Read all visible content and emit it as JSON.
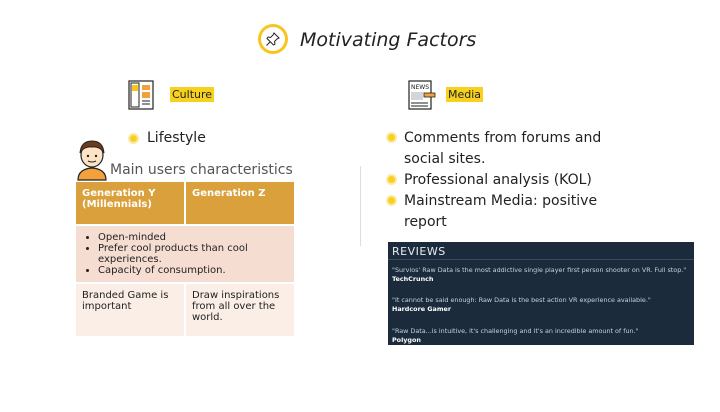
{
  "header": {
    "title": "Motivating Factors",
    "icon": "pushpin-icon"
  },
  "culture": {
    "label": "Culture",
    "icon": "culture-panel-icon",
    "bullet": "Lifestyle",
    "subtitle": "Main users characteristics",
    "table": {
      "headers": [
        "Generation Y (Millennials)",
        "Generation Z"
      ],
      "shared_traits": [
        "Open-minded",
        "Prefer cool products than cool experiences.",
        "Capacity of consumption."
      ],
      "row_last": [
        "Branded Game is important",
        "Draw inspirations from all over the world."
      ]
    }
  },
  "media": {
    "label": "Media",
    "icon": "newspaper-icon",
    "bullets": [
      "Comments from forums and social sites.",
      "Professional analysis (KOL)",
      "Mainstream Media: positive report"
    ],
    "reviews": {
      "title": "REVIEWS",
      "items": [
        {
          "quote": "\"Survios' Raw Data is the most addictive single player first person shooter on VR. Full stop.\"",
          "source": "TechCrunch"
        },
        {
          "quote": "\"It cannot be said enough: Raw Data is the best action VR experience available.\"",
          "source": "Hardcore Gamer"
        },
        {
          "quote": "\"Raw Data...is intuitive, it's challenging and it's an incredible amount of fun.\"",
          "source": "Polygon"
        }
      ]
    }
  },
  "colors": {
    "accent": "#f7d11e",
    "table_header": "#d9a03c",
    "reviews_bg": "#1b2b3c"
  }
}
